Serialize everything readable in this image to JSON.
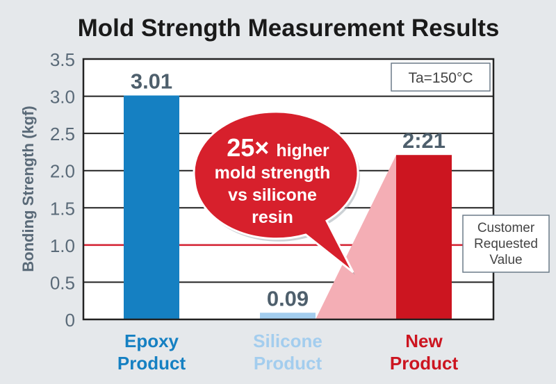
{
  "chart_data": {
    "type": "bar",
    "title": "Mold Strength Measurement Results",
    "ylabel": "Bonding Strength (kgf)",
    "xlabel": "",
    "ylim": [
      0,
      3.5
    ],
    "yticks": [
      0,
      0.5,
      1.0,
      1.5,
      2.0,
      2.5,
      3.0,
      3.5
    ],
    "ytick_labels": [
      "0",
      "0.5",
      "1.0",
      "1.5",
      "2.0",
      "2.5",
      "3.0",
      "3.5"
    ],
    "grid": true,
    "categories": [
      {
        "line1": "Epoxy",
        "line2": "Product"
      },
      {
        "line1": "Silicone",
        "line2": "Product"
      },
      {
        "line1": "New",
        "line2": "Product"
      }
    ],
    "values": [
      3.01,
      0.09,
      2.21
    ],
    "data_labels": [
      "3.01",
      "0.09",
      "2:21"
    ],
    "colors": [
      "#1580c2",
      "#a3cdee",
      "#cc1520"
    ],
    "label_colors": [
      "#1580c2",
      "#a3cdee",
      "#cc1520"
    ],
    "reference_line": {
      "value": 1.0,
      "color": "#d42030",
      "label": [
        "Customer",
        "Requested",
        "Value"
      ]
    },
    "condition_box": "Ta=150°C",
    "callout": {
      "big": "25×",
      "lines": [
        "higher",
        "mold strength",
        "vs silicone",
        "resin"
      ],
      "color": "#d7202c"
    }
  }
}
